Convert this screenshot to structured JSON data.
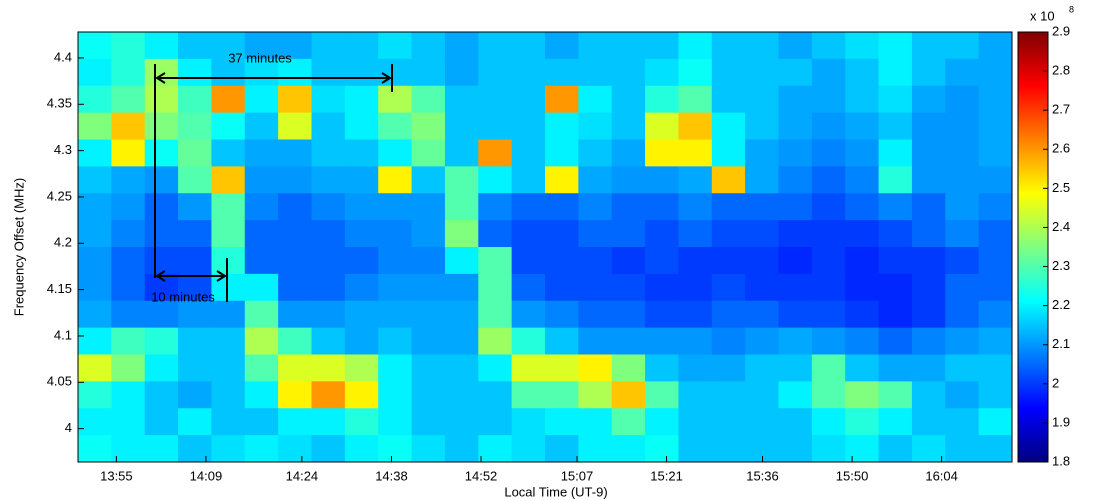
{
  "chart_data": {
    "type": "heatmap",
    "xlabel": "Local Time (UT-9)",
    "ylabel": "Frequency Offset (MHz)",
    "xlim": [
      "13:49",
      "16:15"
    ],
    "xticks": [
      "13:55",
      "14:09",
      "14:24",
      "14:38",
      "14:52",
      "15:07",
      "15:21",
      "15:36",
      "15:50",
      "16:04"
    ],
    "ylim": [
      3.964,
      4.428
    ],
    "yticks": [
      4,
      4.05,
      4.1,
      4.15,
      4.2,
      4.25,
      4.3,
      4.35,
      4.4
    ],
    "colormap": "jet",
    "colorbar": {
      "lim": [
        1.8,
        2.9
      ],
      "ticks": [
        1.8,
        1.9,
        2,
        2.1,
        2.2,
        2.3,
        2.4,
        2.5,
        2.6,
        2.7,
        2.8,
        2.9
      ],
      "multiplier": "x 10",
      "exponent": "8"
    },
    "annotations": [
      "37 minutes",
      "10 minutes"
    ],
    "z": [
      [
        2.22,
        2.25,
        2.2,
        2.15,
        2.15,
        2.12,
        2.12,
        2.15,
        2.15,
        2.18,
        2.15,
        2.12,
        2.15,
        2.15,
        2.12,
        2.15,
        2.15,
        2.15,
        2.2,
        2.15,
        2.15,
        2.12,
        2.15,
        2.18,
        2.2,
        2.15,
        2.15,
        2.12
      ],
      [
        2.2,
        2.25,
        2.38,
        2.2,
        2.15,
        2.18,
        2.2,
        2.15,
        2.15,
        2.15,
        2.15,
        2.12,
        2.15,
        2.15,
        2.15,
        2.15,
        2.15,
        2.18,
        2.22,
        2.15,
        2.15,
        2.15,
        2.12,
        2.15,
        2.2,
        2.15,
        2.12,
        2.12
      ],
      [
        2.25,
        2.3,
        2.4,
        2.28,
        2.6,
        2.2,
        2.55,
        2.18,
        2.2,
        2.4,
        2.3,
        2.15,
        2.15,
        2.15,
        2.6,
        2.2,
        2.15,
        2.25,
        2.3,
        2.15,
        2.15,
        2.12,
        2.12,
        2.15,
        2.18,
        2.12,
        2.1,
        2.12
      ],
      [
        2.35,
        2.55,
        2.35,
        2.3,
        2.22,
        2.15,
        2.45,
        2.15,
        2.2,
        2.3,
        2.35,
        2.15,
        2.15,
        2.15,
        2.2,
        2.18,
        2.15,
        2.45,
        2.55,
        2.2,
        2.15,
        2.12,
        2.1,
        2.12,
        2.15,
        2.1,
        2.1,
        2.12
      ],
      [
        2.2,
        2.5,
        2.22,
        2.32,
        2.15,
        2.12,
        2.12,
        2.15,
        2.15,
        2.2,
        2.32,
        2.15,
        2.6,
        2.15,
        2.2,
        2.15,
        2.12,
        2.5,
        2.5,
        2.2,
        2.12,
        2.1,
        2.08,
        2.1,
        2.2,
        2.1,
        2.1,
        2.12
      ],
      [
        2.15,
        2.12,
        2.1,
        2.3,
        2.55,
        2.1,
        2.1,
        2.12,
        2.12,
        2.5,
        2.15,
        2.3,
        2.2,
        2.15,
        2.5,
        2.12,
        2.1,
        2.1,
        2.12,
        2.55,
        2.12,
        2.08,
        2.05,
        2.08,
        2.25,
        2.1,
        2.1,
        2.1
      ],
      [
        2.12,
        2.1,
        2.05,
        2.1,
        2.3,
        2.08,
        2.05,
        2.08,
        2.1,
        2.1,
        2.1,
        2.3,
        2.08,
        2.05,
        2.05,
        2.08,
        2.05,
        2.05,
        2.08,
        2.05,
        2.05,
        2.05,
        2.02,
        2.05,
        2.08,
        2.05,
        2.1,
        2.08
      ],
      [
        2.12,
        2.08,
        2.05,
        2.05,
        2.3,
        2.05,
        2.05,
        2.05,
        2.08,
        2.08,
        2.1,
        2.35,
        2.05,
        2.02,
        2.02,
        2.05,
        2.05,
        2.02,
        2.05,
        2.02,
        2.02,
        2.0,
        2.0,
        2.0,
        2.02,
        2.05,
        2.08,
        2.05
      ],
      [
        2.1,
        2.05,
        2.02,
        2.02,
        2.25,
        2.05,
        2.05,
        2.05,
        2.05,
        2.08,
        2.08,
        2.2,
        2.3,
        2.02,
        2.02,
        2.02,
        2.0,
        2.02,
        2.0,
        2.0,
        2.0,
        1.98,
        2.0,
        1.98,
        2.0,
        2.0,
        2.02,
        2.05
      ],
      [
        2.1,
        2.05,
        2.0,
        2.02,
        2.2,
        2.2,
        2.05,
        2.05,
        2.08,
        2.1,
        2.1,
        2.1,
        2.3,
        2.05,
        2.02,
        2.02,
        2.02,
        2.0,
        2.0,
        2.02,
        2.0,
        2.0,
        2.0,
        1.98,
        1.98,
        2.0,
        2.05,
        2.05
      ],
      [
        2.12,
        2.08,
        2.08,
        2.1,
        2.1,
        2.3,
        2.1,
        2.1,
        2.12,
        2.12,
        2.12,
        2.12,
        2.3,
        2.1,
        2.08,
        2.05,
        2.05,
        2.02,
        2.02,
        2.05,
        2.05,
        2.02,
        2.02,
        2.0,
        1.98,
        2.0,
        2.05,
        2.08
      ],
      [
        2.2,
        2.28,
        2.25,
        2.15,
        2.15,
        2.4,
        2.28,
        2.15,
        2.12,
        2.15,
        2.12,
        2.12,
        2.38,
        2.25,
        2.15,
        2.1,
        2.1,
        2.1,
        2.1,
        2.08,
        2.1,
        2.12,
        2.1,
        2.08,
        2.05,
        2.08,
        2.1,
        2.12
      ],
      [
        2.45,
        2.35,
        2.2,
        2.15,
        2.15,
        2.3,
        2.45,
        2.45,
        2.4,
        2.2,
        2.15,
        2.15,
        2.2,
        2.45,
        2.45,
        2.5,
        2.35,
        2.15,
        2.12,
        2.12,
        2.15,
        2.15,
        2.3,
        2.15,
        2.12,
        2.12,
        2.15,
        2.15
      ],
      [
        2.25,
        2.2,
        2.15,
        2.12,
        2.15,
        2.2,
        2.5,
        2.6,
        2.5,
        2.2,
        2.15,
        2.15,
        2.15,
        2.3,
        2.3,
        2.4,
        2.55,
        2.3,
        2.15,
        2.15,
        2.15,
        2.2,
        2.3,
        2.35,
        2.3,
        2.15,
        2.12,
        2.15
      ],
      [
        2.2,
        2.2,
        2.15,
        2.2,
        2.15,
        2.15,
        2.2,
        2.2,
        2.25,
        2.2,
        2.15,
        2.15,
        2.15,
        2.18,
        2.2,
        2.2,
        2.3,
        2.2,
        2.15,
        2.15,
        2.15,
        2.15,
        2.2,
        2.25,
        2.2,
        2.15,
        2.15,
        2.2
      ],
      [
        2.22,
        2.2,
        2.2,
        2.15,
        2.18,
        2.2,
        2.18,
        2.15,
        2.2,
        2.22,
        2.18,
        2.15,
        2.2,
        2.18,
        2.15,
        2.2,
        2.2,
        2.22,
        2.15,
        2.15,
        2.15,
        2.15,
        2.18,
        2.2,
        2.15,
        2.18,
        2.15,
        2.15
      ]
    ]
  }
}
